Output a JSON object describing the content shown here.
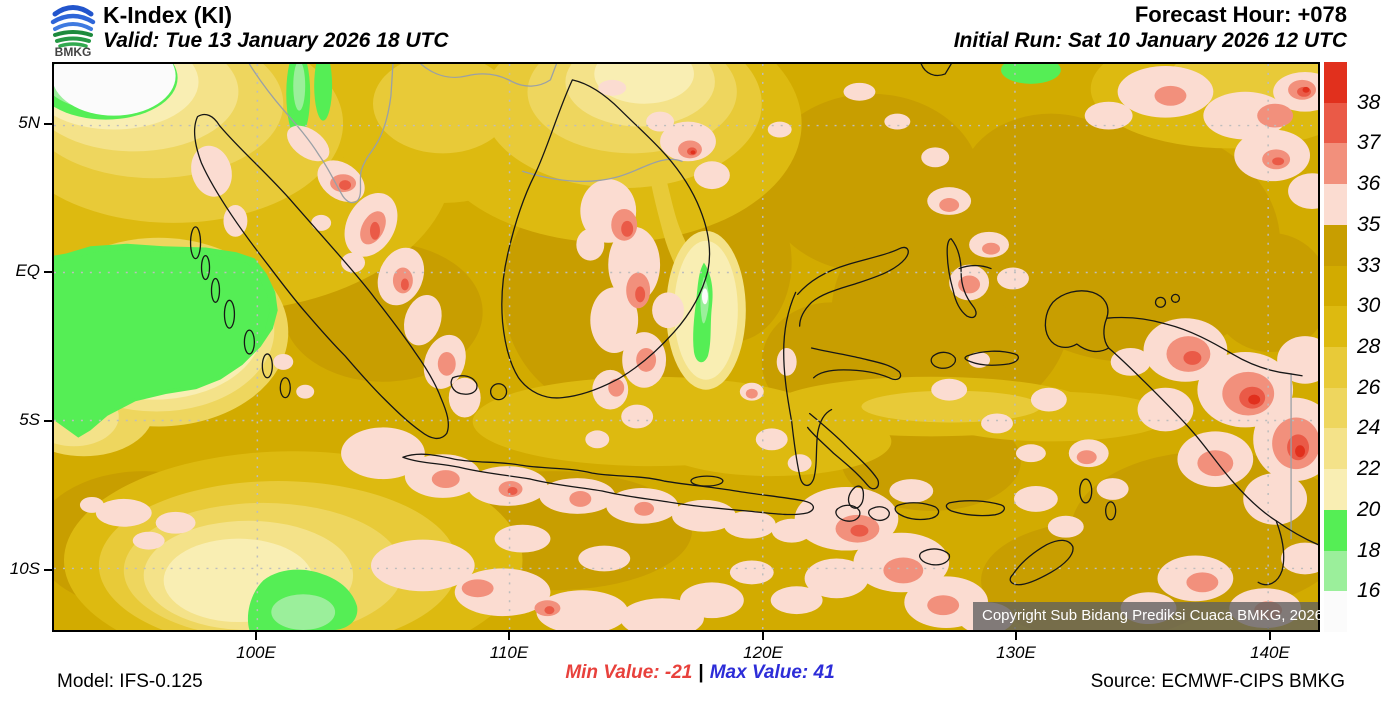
{
  "header": {
    "logo_text": "BMKG",
    "title": "K-Index (KI)",
    "valid": "Valid: Tue 13 January 2026 18 UTC",
    "forecast_hour": "Forecast Hour: +078",
    "initial_run": "Initial Run: Sat 10 January 2026 12 UTC"
  },
  "map": {
    "copyright": "Copyright Sub Bidang Prediksi Cuaca BMKG, 2026",
    "y_axis_labels": [
      "5N",
      "EQ",
      "5S",
      "10S"
    ],
    "x_axis_labels": [
      "100E",
      "110E",
      "120E",
      "130E",
      "140E"
    ]
  },
  "legend": {
    "tick_labels": [
      "38",
      "37",
      "36",
      "35",
      "33",
      "30",
      "28",
      "26",
      "24",
      "22",
      "20",
      "18",
      "16"
    ],
    "segment_colors_top_to_bottom": [
      "#e1301d",
      "#ea5a47",
      "#f2907c",
      "#fbdcd1",
      "#c89e00",
      "#d2ab00",
      "#ddba10",
      "#e8ca38",
      "#eed65e",
      "#f4e289",
      "#f9eeb3",
      "#55ee55",
      "#9bef9b",
      "#fbfbfb"
    ]
  },
  "footer": {
    "model": "Model: IFS-0.125",
    "min_value_label": "Min Value: -21",
    "separator": "|",
    "max_value_label": "Max Value:  41",
    "source": "Source: ECMWF-CIPS BMKG",
    "min_color": "#e8413c",
    "max_color": "#2d2dd8"
  },
  "values": {
    "parameter": "K-Index (KI)",
    "min_value": -21,
    "max_value": 41,
    "forecast_hour": "+078"
  }
}
